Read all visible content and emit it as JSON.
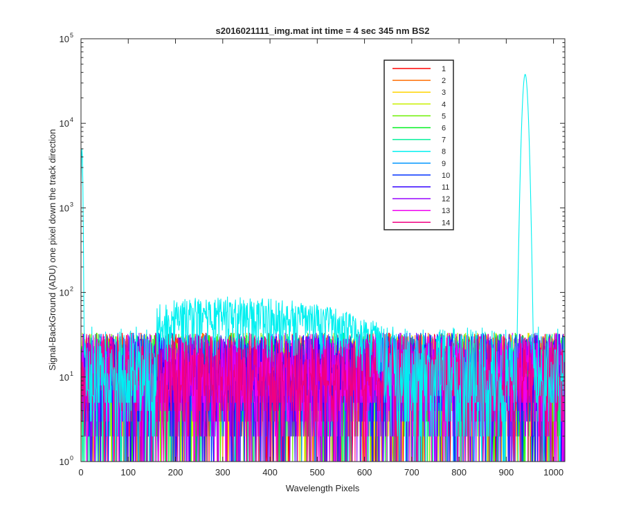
{
  "chart_data": {
    "type": "line",
    "title": "s2016021111_img.mat int time = 4 sec  345 nm BS2",
    "xlabel": "Wavelength Pixels",
    "ylabel": "Signal-BackGround (ADU) one pixel down the track direction",
    "xlim": [
      0,
      1024
    ],
    "ylim": [
      1,
      100000
    ],
    "yscale": "log",
    "xticks": [
      0,
      100,
      200,
      300,
      400,
      500,
      600,
      700,
      800,
      900,
      1000
    ],
    "xtick_labels": [
      "0",
      "100",
      "200",
      "300",
      "400",
      "500",
      "600",
      "700",
      "800",
      "900",
      "1000"
    ],
    "yticks": [
      1,
      10,
      100,
      1000,
      10000,
      100000
    ],
    "ytick_labels": [
      {
        "base": "10",
        "exp": "0"
      },
      {
        "base": "10",
        "exp": "1"
      },
      {
        "base": "10",
        "exp": "2"
      },
      {
        "base": "10",
        "exp": "3"
      },
      {
        "base": "10",
        "exp": "4"
      },
      {
        "base": "10",
        "exp": "5"
      }
    ],
    "grid": false,
    "legend_position": "top-right",
    "x_range_points": [
      0,
      1023
    ],
    "noise_level_typical": 15,
    "noise_level_max": 55,
    "series": [
      {
        "name": "1",
        "color": "#ff0000"
      },
      {
        "name": "2",
        "color": "#ff6e00"
      },
      {
        "name": "3",
        "color": "#ffd400"
      },
      {
        "name": "4",
        "color": "#c8f000"
      },
      {
        "name": "5",
        "color": "#6cf000"
      },
      {
        "name": "6",
        "color": "#00f020"
      },
      {
        "name": "7",
        "color": "#00f09a"
      },
      {
        "name": "8",
        "color": "#00f0f0",
        "elevated_band": {
          "x": [
            160,
            640
          ],
          "peak_value": 110,
          "peak_x": 320
        },
        "peaks": [
          {
            "x": 2,
            "value": 5000
          },
          {
            "x": 940,
            "value": 38000
          }
        ]
      },
      {
        "name": "9",
        "color": "#0096ff"
      },
      {
        "name": "10",
        "color": "#0032ff"
      },
      {
        "name": "11",
        "color": "#3200ff"
      },
      {
        "name": "12",
        "color": "#9600ff"
      },
      {
        "name": "13",
        "color": "#f000f0"
      },
      {
        "name": "14",
        "color": "#f00080"
      }
    ],
    "draw_order": [
      0,
      1,
      2,
      3,
      4,
      5,
      6,
      8,
      9,
      10,
      11,
      12,
      13,
      7
    ]
  }
}
